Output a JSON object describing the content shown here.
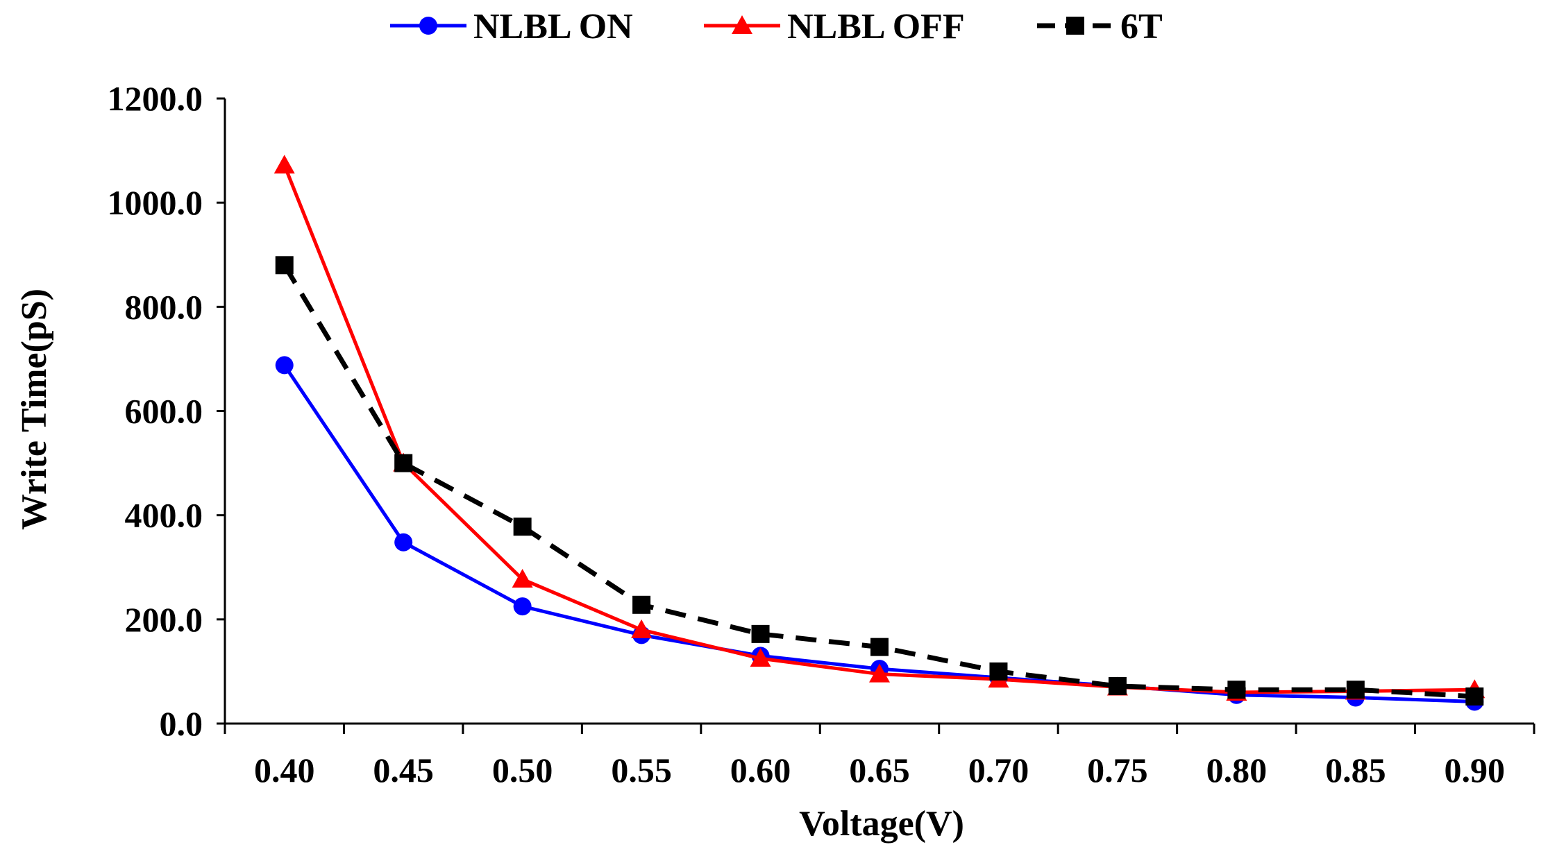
{
  "chart_data": {
    "type": "line",
    "title": "",
    "xlabel": "Voltage(V)",
    "ylabel": "Write Time(pS)",
    "ylim": [
      0,
      1200
    ],
    "yticks": [
      "0.0",
      "200.0",
      "400.0",
      "600.0",
      "800.0",
      "1000.0",
      "1200.0"
    ],
    "categories": [
      "0.40",
      "0.45",
      "0.50",
      "0.55",
      "0.60",
      "0.65",
      "0.70",
      "0.75",
      "0.80",
      "0.85",
      "0.90"
    ],
    "grid": false,
    "legend_position": "top",
    "series": [
      {
        "name": "NLBL ON",
        "color": "#0000ff",
        "marker": "circle",
        "dash": "solid",
        "values": [
          688,
          348,
          225,
          170,
          130,
          105,
          88,
          72,
          55,
          50,
          42
        ]
      },
      {
        "name": "NLBL OFF",
        "color": "#ff0000",
        "marker": "triangle",
        "dash": "solid",
        "values": [
          1072,
          500,
          277,
          180,
          125,
          95,
          85,
          70,
          60,
          62,
          65
        ]
      },
      {
        "name": "6T",
        "color": "#000000",
        "marker": "square",
        "dash": "dashed",
        "values": [
          880,
          500,
          378,
          228,
          172,
          147,
          100,
          72,
          65,
          65,
          52
        ]
      }
    ]
  }
}
